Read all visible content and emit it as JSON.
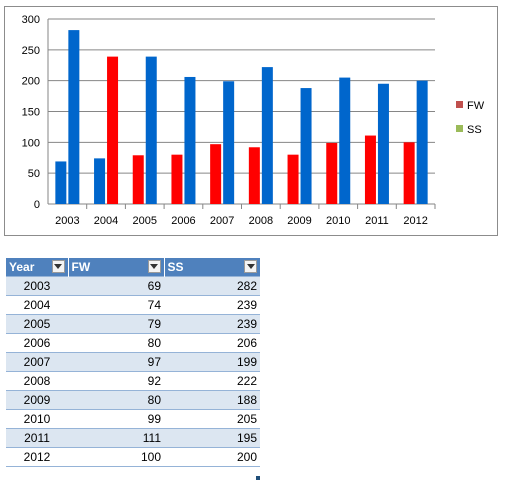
{
  "chart_data": {
    "type": "bar",
    "categories": [
      "2003",
      "2004",
      "2005",
      "2006",
      "2007",
      "2008",
      "2009",
      "2010",
      "2011",
      "2012"
    ],
    "series": [
      {
        "name": "FW",
        "values": [
          69,
          74,
          79,
          80,
          97,
          92,
          80,
          99,
          111,
          100
        ],
        "color": "#ff0000",
        "legend_color": "#c0504d"
      },
      {
        "name": "SS",
        "values": [
          282,
          239,
          239,
          206,
          199,
          222,
          188,
          205,
          195,
          200
        ],
        "color": "#0066cc",
        "legend_color": "#9bbb59"
      }
    ],
    "bar_colors_note_by_year": {
      "2003": [
        "#0066cc",
        "#0066cc"
      ],
      "2004": [
        "#0066cc",
        "#ff0000"
      ]
    },
    "ylim": [
      0,
      300
    ],
    "yticks": [
      0,
      50,
      100,
      150,
      200,
      250,
      300
    ],
    "grid": true,
    "legend": "right"
  },
  "table": {
    "headers": [
      "Year",
      "FW",
      "SS"
    ],
    "rows": [
      [
        "2003",
        "69",
        "282"
      ],
      [
        "2004",
        "74",
        "239"
      ],
      [
        "2005",
        "79",
        "239"
      ],
      [
        "2006",
        "80",
        "206"
      ],
      [
        "2007",
        "97",
        "199"
      ],
      [
        "2008",
        "92",
        "222"
      ],
      [
        "2009",
        "80",
        "188"
      ],
      [
        "2010",
        "99",
        "205"
      ],
      [
        "2011",
        "111",
        "195"
      ],
      [
        "2012",
        "100",
        "200"
      ]
    ],
    "header_color": "#4f81bd",
    "band_color": "#dce6f1"
  }
}
